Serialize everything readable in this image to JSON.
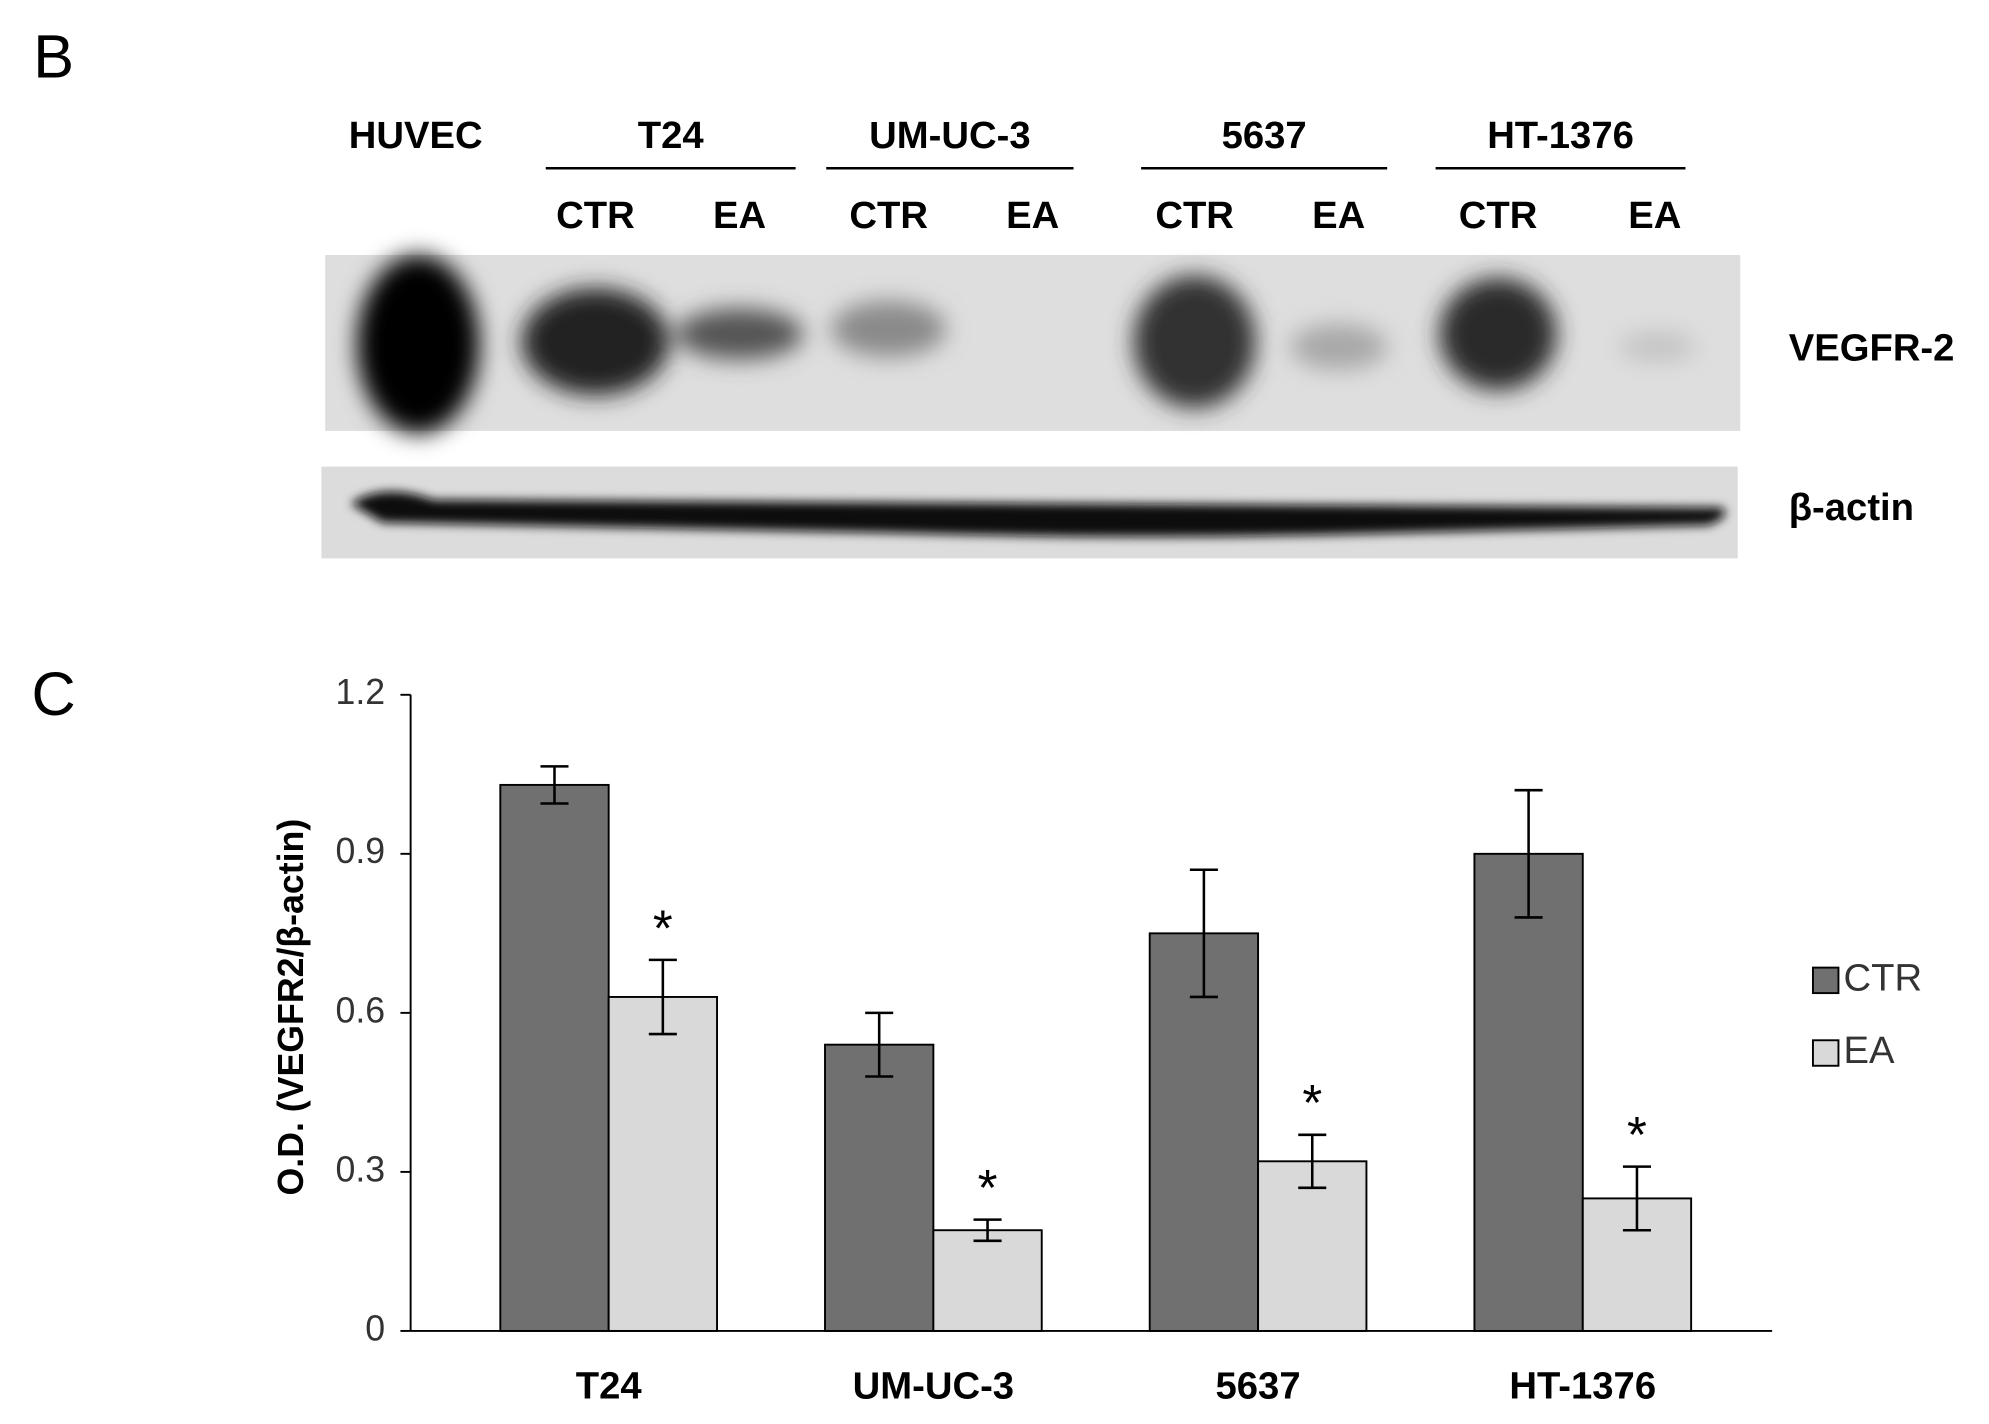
{
  "panel_labels": [
    "B",
    "C"
  ],
  "blot": {
    "single_lane": "HUVEC",
    "groups": [
      {
        "name": "T24",
        "lanes": [
          "CTR",
          "EA"
        ]
      },
      {
        "name": "UM-UC-3",
        "lanes": [
          "CTR",
          "EA"
        ]
      },
      {
        "name": "5637",
        "lanes": [
          "CTR",
          "EA"
        ]
      },
      {
        "name": "HT-1376",
        "lanes": [
          "CTR",
          "EA"
        ]
      }
    ],
    "rows": [
      "VEGFR-2",
      "β-actin"
    ]
  },
  "chart_data": {
    "type": "bar",
    "y_label": "O.D. (VEGFR2/β-actin)",
    "categories": [
      "T24",
      "UM-UC-3",
      "5637",
      "HT-1376"
    ],
    "series": [
      {
        "name": "CTR",
        "color": "#707070",
        "values": [
          1.03,
          0.54,
          0.75,
          0.9
        ],
        "errors": [
          0.035,
          0.06,
          0.12,
          0.12
        ]
      },
      {
        "name": "EA",
        "color": "#d9d9d9",
        "values": [
          0.63,
          0.19,
          0.32,
          0.25
        ],
        "errors": [
          0.07,
          0.02,
          0.05,
          0.06
        ],
        "annotations": [
          "*",
          "*",
          "*",
          "*"
        ]
      }
    ],
    "ylim": [
      0,
      1.2
    ],
    "yticks": [
      0,
      0.3,
      0.6,
      0.9,
      1.2
    ],
    "legend": "right"
  }
}
